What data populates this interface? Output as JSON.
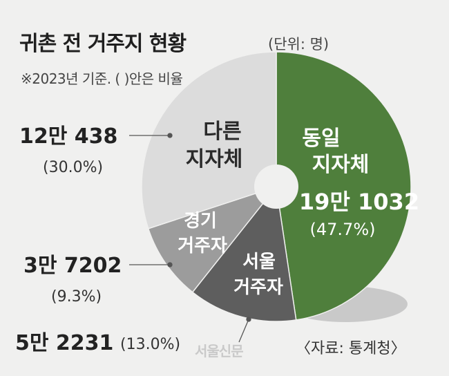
{
  "title": "귀촌 전 거주지 현황",
  "unit": "(단위: 명)",
  "note": "※2023년 기준. ( )안은 비율",
  "source": "〈자료: 통계청〉",
  "logo_text": "서울신문",
  "colors": {
    "same": "#4f7f3c",
    "seoul": "#5e5e5e",
    "gyeonggi": "#9c9c9c",
    "other": "#dcdcdc",
    "shadow": "#c9c9c9",
    "background": "#f0f0ef"
  },
  "chart_data": {
    "type": "pie",
    "title": "귀촌 전 거주지 현황",
    "unit": "명",
    "slices": [
      {
        "label": "동일 지자체",
        "value": 191032,
        "value_text": "19만 1032",
        "percent": 47.7,
        "percent_text": "(47.7%)"
      },
      {
        "label": "서울 거주자",
        "value": 52231,
        "value_text": "5만 2231",
        "percent": 13.0,
        "percent_text": "(13.0%)"
      },
      {
        "label": "경기 거주자",
        "value": 37202,
        "value_text": "3만 7202",
        "percent": 9.3,
        "percent_text": "(9.3%)"
      },
      {
        "label": "다른 지자체",
        "value": 120438,
        "value_text": "12만 438",
        "percent": 30.0,
        "percent_text": "(30.0%)"
      }
    ]
  }
}
